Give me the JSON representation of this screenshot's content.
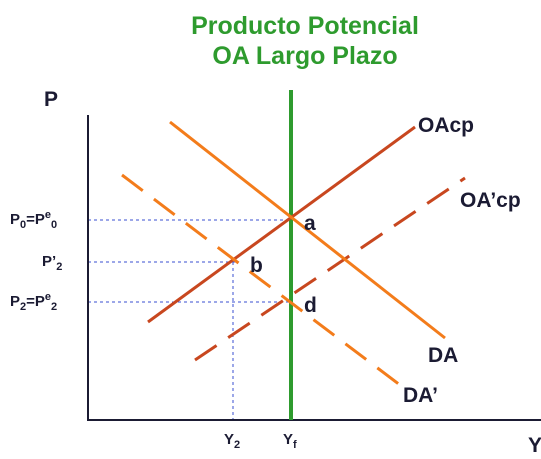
{
  "title": [
    "Producto Potencial",
    "OA Largo Plazo"
  ],
  "axes": {
    "y": "P",
    "x": "Y"
  },
  "y_axis_labels": [
    [
      "P",
      "0",
      "=P",
      "e",
      "0"
    ],
    [
      "P’",
      "2"
    ],
    [
      "P",
      "2",
      "=P",
      "e",
      "2"
    ]
  ],
  "x_axis_labels": [
    [
      "Y",
      "2"
    ],
    [
      "Y",
      "f"
    ]
  ],
  "curves": [
    "OAcp",
    "OA’cp",
    "DA",
    "DA’"
  ],
  "points": [
    "a",
    "b",
    "d"
  ]
}
